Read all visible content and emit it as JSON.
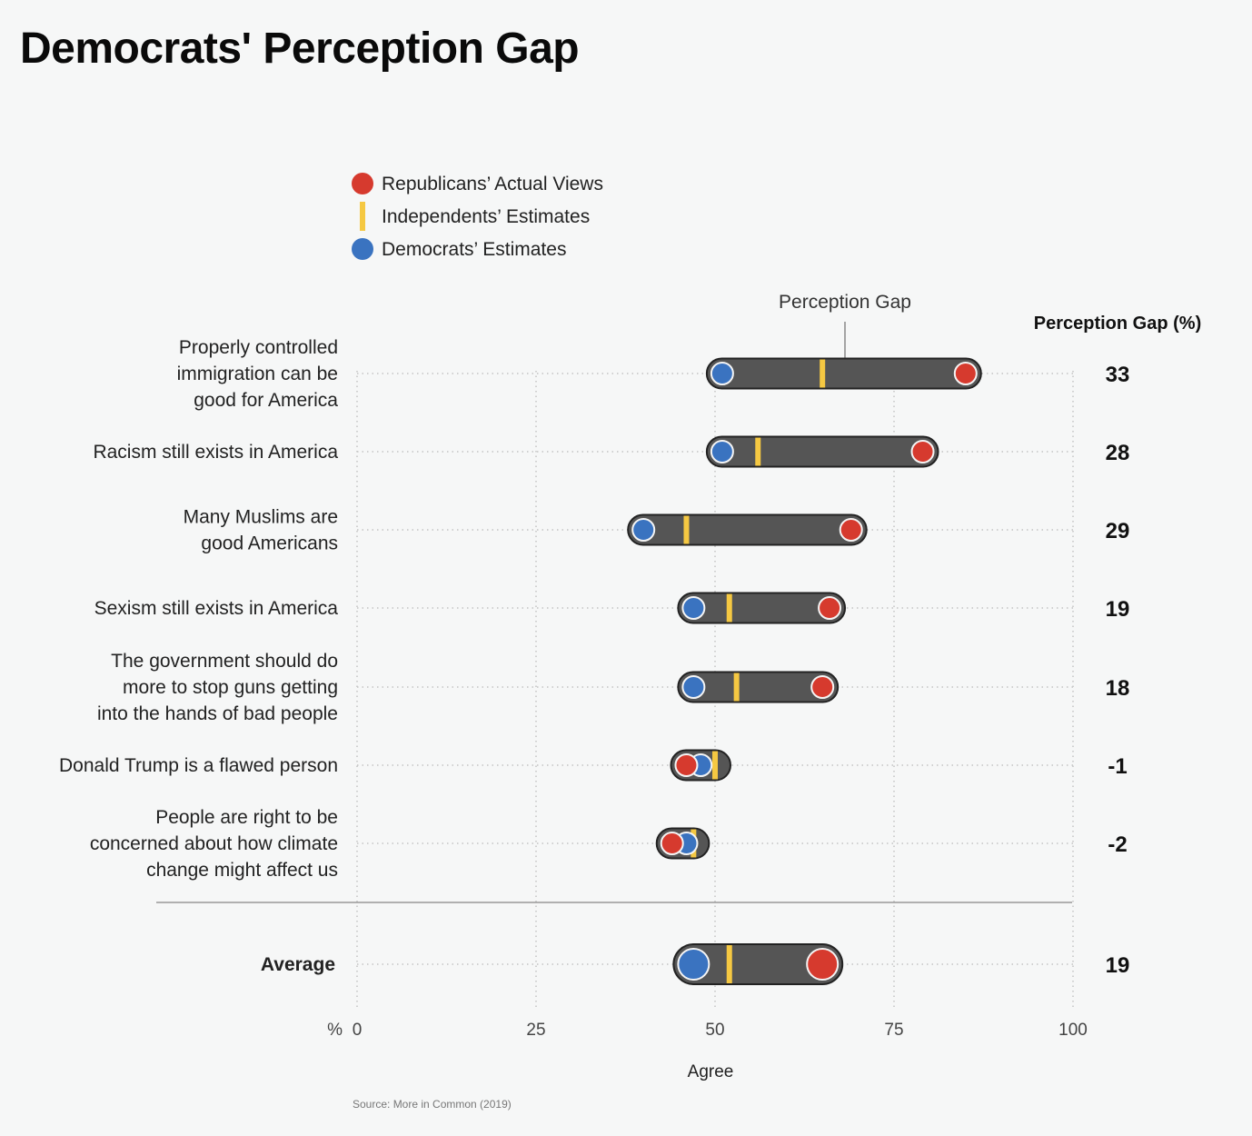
{
  "title": "Democrats' Perception Gap",
  "legend": [
    {
      "label": "Republicans’ Actual Views",
      "marker": "circle",
      "color": "#d63a2e"
    },
    {
      "label": "Independents’ Estimates",
      "marker": "bar",
      "color": "#f5c842"
    },
    {
      "label": "Democrats’ Estimates",
      "marker": "circle",
      "color": "#3a73c0"
    }
  ],
  "annotation": "Perception Gap",
  "gap_header": "Perception Gap (%)",
  "source": "Source: More in Common (2019)",
  "chart_data": {
    "type": "dot-range",
    "x_unit_label": "%",
    "xlabel": "Agree",
    "xlim": [
      0,
      100
    ],
    "xticks": [
      0,
      25,
      50,
      75,
      100
    ],
    "colors": {
      "republicans": "#d63a2e",
      "independents": "#f5c842",
      "democrats": "#3a73c0",
      "bar": "#555555"
    },
    "rows": [
      {
        "label": [
          "Properly controlled",
          "immigration can be",
          "good for America"
        ],
        "republicans": 85,
        "independents": 65,
        "democrats": 51,
        "gap": "33"
      },
      {
        "label": [
          "Racism still exists in America"
        ],
        "republicans": 79,
        "independents": 56,
        "democrats": 51,
        "gap": "28"
      },
      {
        "label": [
          "Many Muslims are",
          "good Americans"
        ],
        "republicans": 69,
        "independents": 46,
        "democrats": 40,
        "gap": "29"
      },
      {
        "label": [
          "Sexism still exists in America"
        ],
        "republicans": 66,
        "independents": 52,
        "democrats": 47,
        "gap": "19"
      },
      {
        "label": [
          "The government should do",
          "more to stop guns getting",
          "into the hands of bad people"
        ],
        "republicans": 65,
        "independents": 53,
        "democrats": 47,
        "gap": "18"
      },
      {
        "label": [
          "Donald Trump is a flawed person"
        ],
        "republicans": 46,
        "independents": 50,
        "democrats": 48,
        "gap": "-1"
      },
      {
        "label": [
          "People are right to be",
          "concerned about how climate",
          "change might affect us"
        ],
        "republicans": 44,
        "independents": 47,
        "democrats": 46,
        "gap": "-2"
      }
    ],
    "average": {
      "label": "Average",
      "republicans": 65,
      "independents": 52,
      "democrats": 47,
      "gap": "19"
    }
  }
}
